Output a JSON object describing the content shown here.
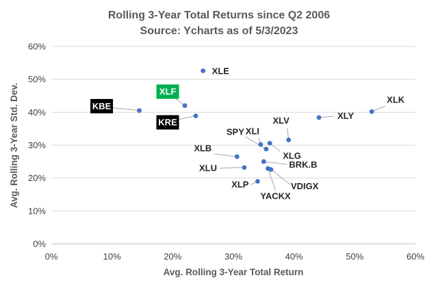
{
  "chart_data": {
    "type": "scatter",
    "title_lines": [
      "Rolling 3-Year Total Returns since Q2 2006",
      "Source: Ycharts as of 5/3/2023"
    ],
    "xlabel": "Avg. Rolling 3-Year Total Return",
    "ylabel": "Avg. Rolling 3-Year Std. Dev.",
    "xlim": [
      0,
      0.6
    ],
    "ylim": [
      0,
      0.6
    ],
    "xticks": [
      0,
      0.1,
      0.2,
      0.3,
      0.4,
      0.5,
      0.6
    ],
    "yticks": [
      0,
      0.1,
      0.2,
      0.3,
      0.4,
      0.5,
      0.6
    ],
    "xtick_labels": [
      "0%",
      "10%",
      "20%",
      "30%",
      "40%",
      "50%",
      "60%"
    ],
    "ytick_labels": [
      "0%",
      "10%",
      "20%",
      "30%",
      "40%",
      "50%",
      "60%"
    ],
    "grid": "horizontal",
    "marker_color": "#4472C4",
    "gridline_color": "#D9D9D9",
    "points": [
      {
        "label": "XLE",
        "x": 0.25,
        "y": 0.526
      },
      {
        "label": "XLF",
        "x": 0.22,
        "y": 0.42,
        "highlight": "#00B050"
      },
      {
        "label": "KBE",
        "x": 0.145,
        "y": 0.405,
        "highlight": "#000000"
      },
      {
        "label": "KRE",
        "x": 0.238,
        "y": 0.389,
        "highlight": "#000000"
      },
      {
        "label": "XLK",
        "x": 0.528,
        "y": 0.402
      },
      {
        "label": "XLY",
        "x": 0.441,
        "y": 0.384
      },
      {
        "label": "XLV",
        "x": 0.391,
        "y": 0.316
      },
      {
        "label": "XLI",
        "x": 0.345,
        "y": 0.302
      },
      {
        "label": "SPY",
        "x": 0.354,
        "y": 0.288
      },
      {
        "label": "XLG",
        "x": 0.36,
        "y": 0.306
      },
      {
        "label": "XLB",
        "x": 0.306,
        "y": 0.265
      },
      {
        "label": "BRK.B",
        "x": 0.35,
        "y": 0.25
      },
      {
        "label": "XLU",
        "x": 0.318,
        "y": 0.232
      },
      {
        "label": "VDIGX",
        "x": 0.362,
        "y": 0.226
      },
      {
        "label": "YACKX",
        "x": 0.357,
        "y": 0.229
      },
      {
        "label": "XLP",
        "x": 0.34,
        "y": 0.19
      }
    ]
  }
}
